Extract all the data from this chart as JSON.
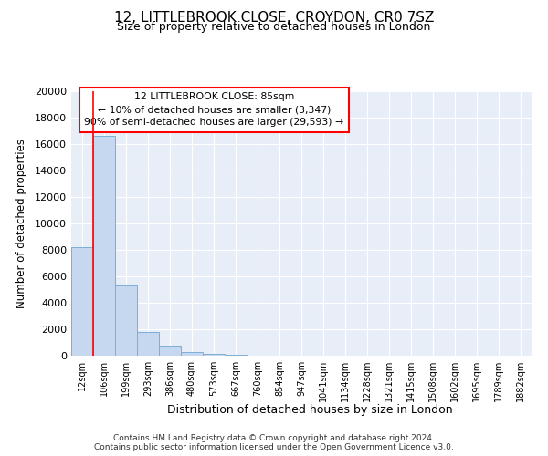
{
  "title1": "12, LITTLEBROOK CLOSE, CROYDON, CR0 7SZ",
  "title2": "Size of property relative to detached houses in London",
  "xlabel": "Distribution of detached houses by size in London",
  "ylabel": "Number of detached properties",
  "categories": [
    "12sqm",
    "106sqm",
    "199sqm",
    "293sqm",
    "386sqm",
    "480sqm",
    "573sqm",
    "667sqm",
    "760sqm",
    "854sqm",
    "947sqm",
    "1041sqm",
    "1134sqm",
    "1228sqm",
    "1321sqm",
    "1415sqm",
    "1508sqm",
    "1602sqm",
    "1695sqm",
    "1789sqm",
    "1882sqm"
  ],
  "bar_heights": [
    8200,
    16600,
    5300,
    1800,
    750,
    300,
    150,
    60,
    30,
    15,
    0,
    0,
    0,
    0,
    0,
    0,
    0,
    0,
    0,
    0,
    0
  ],
  "bar_color": "#c5d8f0",
  "bar_edge_color": "#7bafd4",
  "ylim": [
    0,
    20000
  ],
  "yticks": [
    0,
    2000,
    4000,
    6000,
    8000,
    10000,
    12000,
    14000,
    16000,
    18000,
    20000
  ],
  "red_line_x": 0.5,
  "annotation_title": "12 LITTLEBROOK CLOSE: 85sqm",
  "annotation_line1": "← 10% of detached houses are smaller (3,347)",
  "annotation_line2": "90% of semi-detached houses are larger (29,593) →",
  "footer1": "Contains HM Land Registry data © Crown copyright and database right 2024.",
  "footer2": "Contains public sector information licensed under the Open Government Licence v3.0.",
  "plot_bg_color": "#e8eef8"
}
